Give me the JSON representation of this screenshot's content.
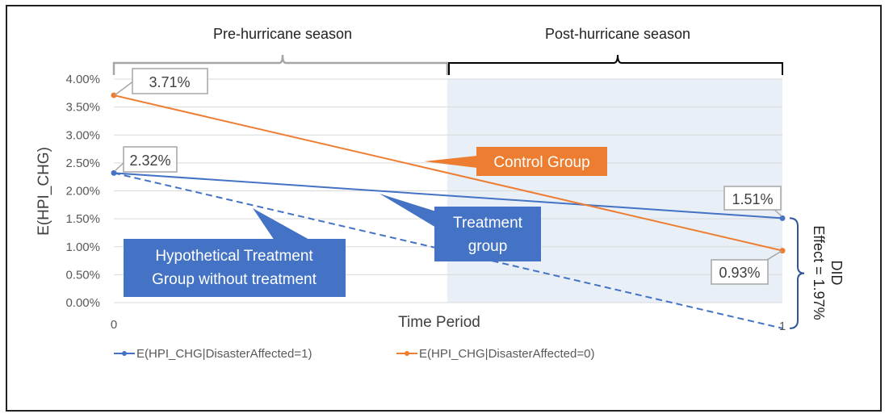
{
  "chart_data": {
    "type": "line",
    "title": "",
    "xlabel": "Time Period",
    "ylabel": "E(HPI_CHG)",
    "x": [
      0,
      1
    ],
    "x_tick_labels": [
      "0",
      "1"
    ],
    "ylim": [
      0,
      4
    ],
    "y_ticks": [
      0,
      0.5,
      1.0,
      1.5,
      2.0,
      2.5,
      3.0,
      3.5,
      4.0
    ],
    "y_tick_labels": [
      "0.00%",
      "0.50%",
      "1.00%",
      "1.50%",
      "2.00%",
      "2.50%",
      "3.00%",
      "3.50%",
      "4.00%"
    ],
    "series": [
      {
        "name": "E(HPI_CHG|DisasterAffected=1)",
        "values": [
          2.32,
          1.51
        ],
        "color": "#4472C4",
        "labels": [
          "2.32%",
          "1.51%"
        ]
      },
      {
        "name": "E(HPI_CHG|DisasterAffected=0)",
        "values": [
          3.71,
          0.93
        ],
        "color": "#ED7D31",
        "labels": [
          "3.71%",
          "0.93%"
        ]
      }
    ],
    "counterfactual": {
      "name": "Hypothetical Treatment Group without treatment",
      "values": [
        2.32,
        -0.46
      ],
      "color": "#4472C4",
      "style": "dashed"
    },
    "seasons": [
      {
        "label": "Pre-hurricane season",
        "shaded": false
      },
      {
        "label": "Post-hurricane season",
        "shaded": true,
        "color": "#E9EFF7"
      }
    ],
    "callouts": {
      "control": "Control Group",
      "treatment_line1": "Treatment",
      "treatment_line2": "group",
      "hypothetical_line1": "Hypothetical Treatment",
      "hypothetical_line2": "Group without treatment"
    },
    "did": {
      "line1": "DID",
      "line2": "Effect = 1.97%"
    },
    "legend_position": "bottom-left",
    "grid": true
  }
}
